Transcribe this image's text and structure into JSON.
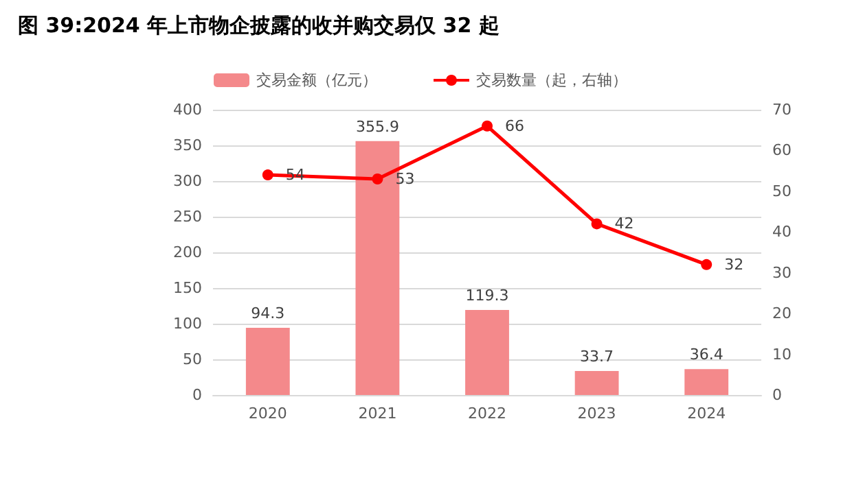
{
  "chart_data": {
    "type": "bar",
    "title": "图 39:2024 年上市物企披露的收并购交易仅 32 起",
    "categories": [
      "2020",
      "2021",
      "2022",
      "2023",
      "2024"
    ],
    "series": [
      {
        "name": "交易金额（亿元）",
        "color": "#f4898b",
        "values": [
          94.3,
          355.9,
          119.3,
          33.7,
          36.4
        ]
      },
      {
        "name": "交易数量（起，右轴）",
        "type": "line",
        "axis": "y2",
        "color": "#ff0000",
        "values": [
          54,
          53,
          66,
          42,
          32
        ]
      }
    ],
    "ylim": [
      0,
      400
    ],
    "yticks": [
      0,
      50,
      100,
      150,
      200,
      250,
      300,
      350,
      400
    ],
    "y2lim": [
      0,
      70
    ],
    "y2ticks": [
      0,
      10,
      20,
      30,
      40,
      50,
      60,
      70
    ],
    "grid": "y",
    "legend": "top",
    "marker": "circle",
    "line_style": "solid",
    "data_labels": true
  }
}
